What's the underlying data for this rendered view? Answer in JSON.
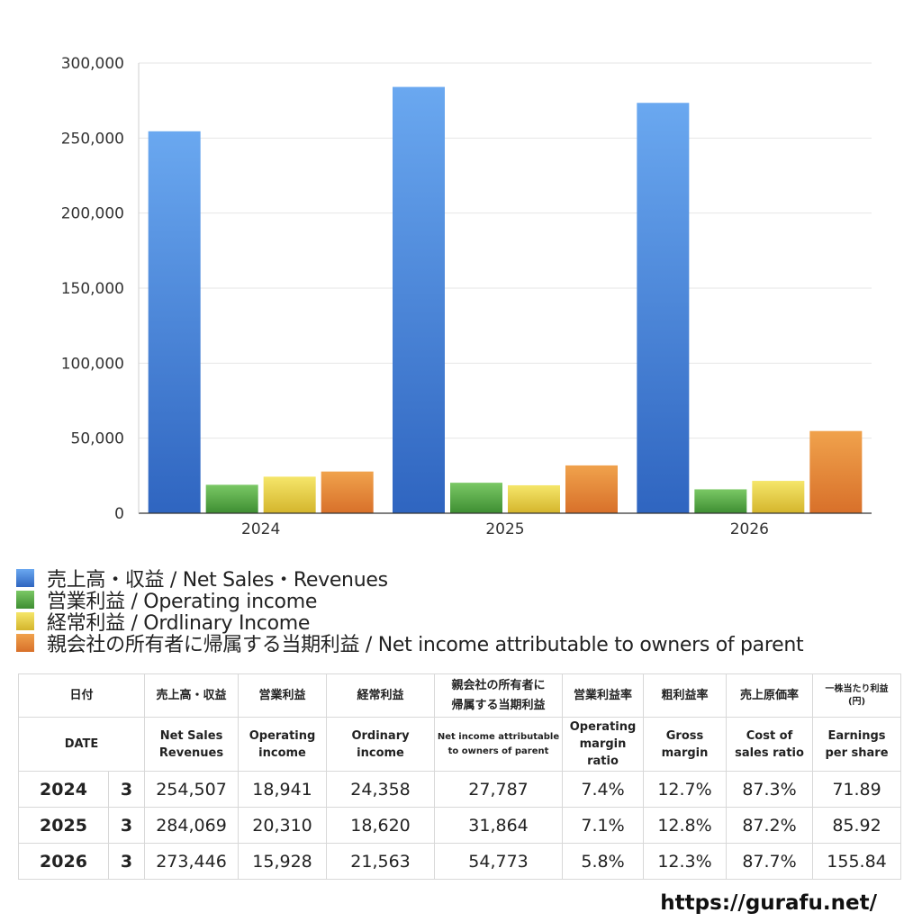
{
  "chart_data": {
    "type": "bar",
    "categories": [
      "2024",
      "2025",
      "2026"
    ],
    "series": [
      {
        "name": "売上高・収益 / Net Sales・Revenues",
        "values": [
          254507,
          284069,
          273446
        ],
        "color_top": "#6aa8f0",
        "color_bottom": "#2f65c0"
      },
      {
        "name": "営業利益 / Operating income",
        "values": [
          18941,
          20310,
          15928
        ],
        "color_top": "#7ac865",
        "color_bottom": "#3e8e32"
      },
      {
        "name": "経常利益 / Ordlinary Income",
        "values": [
          24358,
          18620,
          21563
        ],
        "color_top": "#f5e66a",
        "color_bottom": "#d4b52c"
      },
      {
        "name": "親会社の所有者に帰属する当期利益 / Net income attributable to owners of parent",
        "values": [
          27787,
          31864,
          54773
        ],
        "color_top": "#f0a24c",
        "color_bottom": "#d8702a"
      }
    ],
    "yticks": [
      "0",
      "50,000",
      "100,000",
      "150,000",
      "200,000",
      "250,000",
      "300,000"
    ],
    "ylim": [
      0,
      300000
    ],
    "grid": true,
    "legend_position": "bottom-left"
  },
  "table": {
    "header_jp": [
      "日付",
      "売上高・収益",
      "営業利益",
      "経常利益",
      "親会社の所有者に帰属する当期利益",
      "営業利益率",
      "粗利益率",
      "売上原価率",
      "一株当たり利益(円)"
    ],
    "header_jp_lines": {
      "net": [
        "親会社の所有者に",
        "帰属する当期利益"
      ],
      "eps": [
        "一株当たり利益",
        "(円)"
      ]
    },
    "header_en": {
      "date": "DATE",
      "sales": [
        "Net Sales",
        "Revenues"
      ],
      "op": [
        "Operating",
        "income"
      ],
      "ord": [
        "Ordinary",
        "income"
      ],
      "net": [
        "Net income attributable",
        "to owners of parent"
      ],
      "opm": [
        "Operating",
        "margin",
        "ratio"
      ],
      "gm": [
        "Gross",
        "margin"
      ],
      "cost": [
        "Cost of",
        "sales ratio"
      ],
      "eps": [
        "Earnings",
        "per share"
      ]
    },
    "rows": [
      {
        "year": "2024",
        "month": "3",
        "sales": "254,507",
        "op": "18,941",
        "ord": "24,358",
        "net": "27,787",
        "opm": "7.4%",
        "gm": "12.7%",
        "cost": "87.3%",
        "eps": "71.89"
      },
      {
        "year": "2025",
        "month": "3",
        "sales": "284,069",
        "op": "20,310",
        "ord": "18,620",
        "net": "31,864",
        "opm": "7.1%",
        "gm": "12.8%",
        "cost": "87.2%",
        "eps": "85.92"
      },
      {
        "year": "2026",
        "month": "3",
        "sales": "273,446",
        "op": "15,928",
        "ord": "21,563",
        "net": "54,773",
        "opm": "5.8%",
        "gm": "12.3%",
        "cost": "87.7%",
        "eps": "155.84"
      }
    ]
  },
  "footer": {
    "url": "https://gurafu.net/"
  }
}
